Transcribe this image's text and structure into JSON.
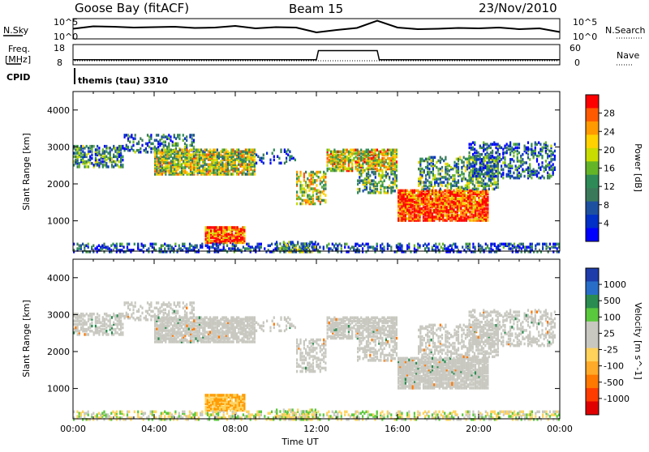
{
  "header": {
    "station": "Goose Bay (fitACF)",
    "beam": "Beam 15",
    "date": "23/Nov/2010"
  },
  "strip_labels": {
    "nsky": "N.Sky",
    "nsearch": "N.Search",
    "freq_line1": "Freq.",
    "freq_line2": "[MHz]",
    "nave": "Nave",
    "cpid": "CPID",
    "cpid_value": "themis (tau) 3310",
    "noise_ticks_left": [
      "10^5",
      "10^0"
    ],
    "noise_ticks_right": [
      "10^5",
      "10^0"
    ],
    "freq_ticks": [
      "18",
      "8"
    ],
    "nave_ticks": [
      "60",
      "0"
    ]
  },
  "panels": {
    "power_ylabel": "Slant Range [km]",
    "velocity_ylabel": "Slant Range [km]",
    "xlabel": "Time UT",
    "yticks": [
      "1000",
      "2000",
      "3000",
      "4000"
    ],
    "xticks": [
      "00:00",
      "04:00",
      "08:00",
      "12:00",
      "16:00",
      "20:00",
      "00:00"
    ]
  },
  "colorbars": {
    "power_label": "Power [dB]",
    "power_ticks": [
      "28",
      "24",
      "20",
      "16",
      "12",
      "8",
      "4"
    ],
    "power_colors": [
      "#ff0000",
      "#ff5a00",
      "#ff9a00",
      "#ffd200",
      "#c8dc00",
      "#64b428",
      "#2e8b57",
      "#3a7a5a",
      "#1e50a0",
      "#0030c8",
      "#0000ff"
    ],
    "velocity_label": "Velocity  [m s^-1]",
    "velocity_ticks": [
      "1000",
      "500",
      "100",
      "25",
      "-25",
      "-100",
      "-500",
      "-1000"
    ],
    "velocity_colors": [
      "#1e3caa",
      "#286ec8",
      "#2a8c50",
      "#5ac83c",
      "#c8c8c0",
      "#c8c8c0",
      "#ffd25a",
      "#ffaa28",
      "#ff7800",
      "#ff3c00",
      "#e10000"
    ]
  },
  "chart_data": [
    {
      "type": "line",
      "panel": "noise",
      "series": [
        {
          "values_desc": "N.Sky",
          "x": [
            0,
            1,
            2,
            3,
            4,
            5,
            6,
            7,
            8,
            9,
            10,
            11,
            12,
            13,
            14,
            15,
            16,
            17,
            18,
            19,
            20,
            21,
            22,
            23,
            24
          ],
          "y": [
            2.5,
            3.1,
            3.0,
            2.8,
            2.9,
            3.0,
            2.7,
            2.8,
            3.2,
            2.6,
            2.9,
            2.8,
            1.6,
            2.2,
            2.7,
            4.5,
            2.8,
            2.4,
            2.5,
            2.7,
            2.6,
            2.8,
            2.4,
            2.6,
            1.7
          ]
        }
      ],
      "ylim": [
        0,
        5
      ]
    },
    {
      "type": "line",
      "panel": "frequency",
      "series": [
        {
          "values_desc": "Freq",
          "x": [
            0,
            12,
            12.1,
            15,
            15.1,
            24
          ],
          "y": [
            10.5,
            10.5,
            15,
            15,
            10.5,
            10.5
          ]
        }
      ],
      "ylim": [
        8,
        18
      ]
    },
    {
      "type": "heatmap",
      "title": "Power",
      "x_range_hours": [
        0,
        24
      ],
      "ylim": [
        180,
        4500
      ],
      "clim": [
        0,
        30
      ]
    },
    {
      "type": "heatmap",
      "title": "Velocity",
      "x_range_hours": [
        0,
        24
      ],
      "ylim": [
        180,
        4500
      ],
      "clim": [
        -1000,
        1000
      ]
    }
  ]
}
